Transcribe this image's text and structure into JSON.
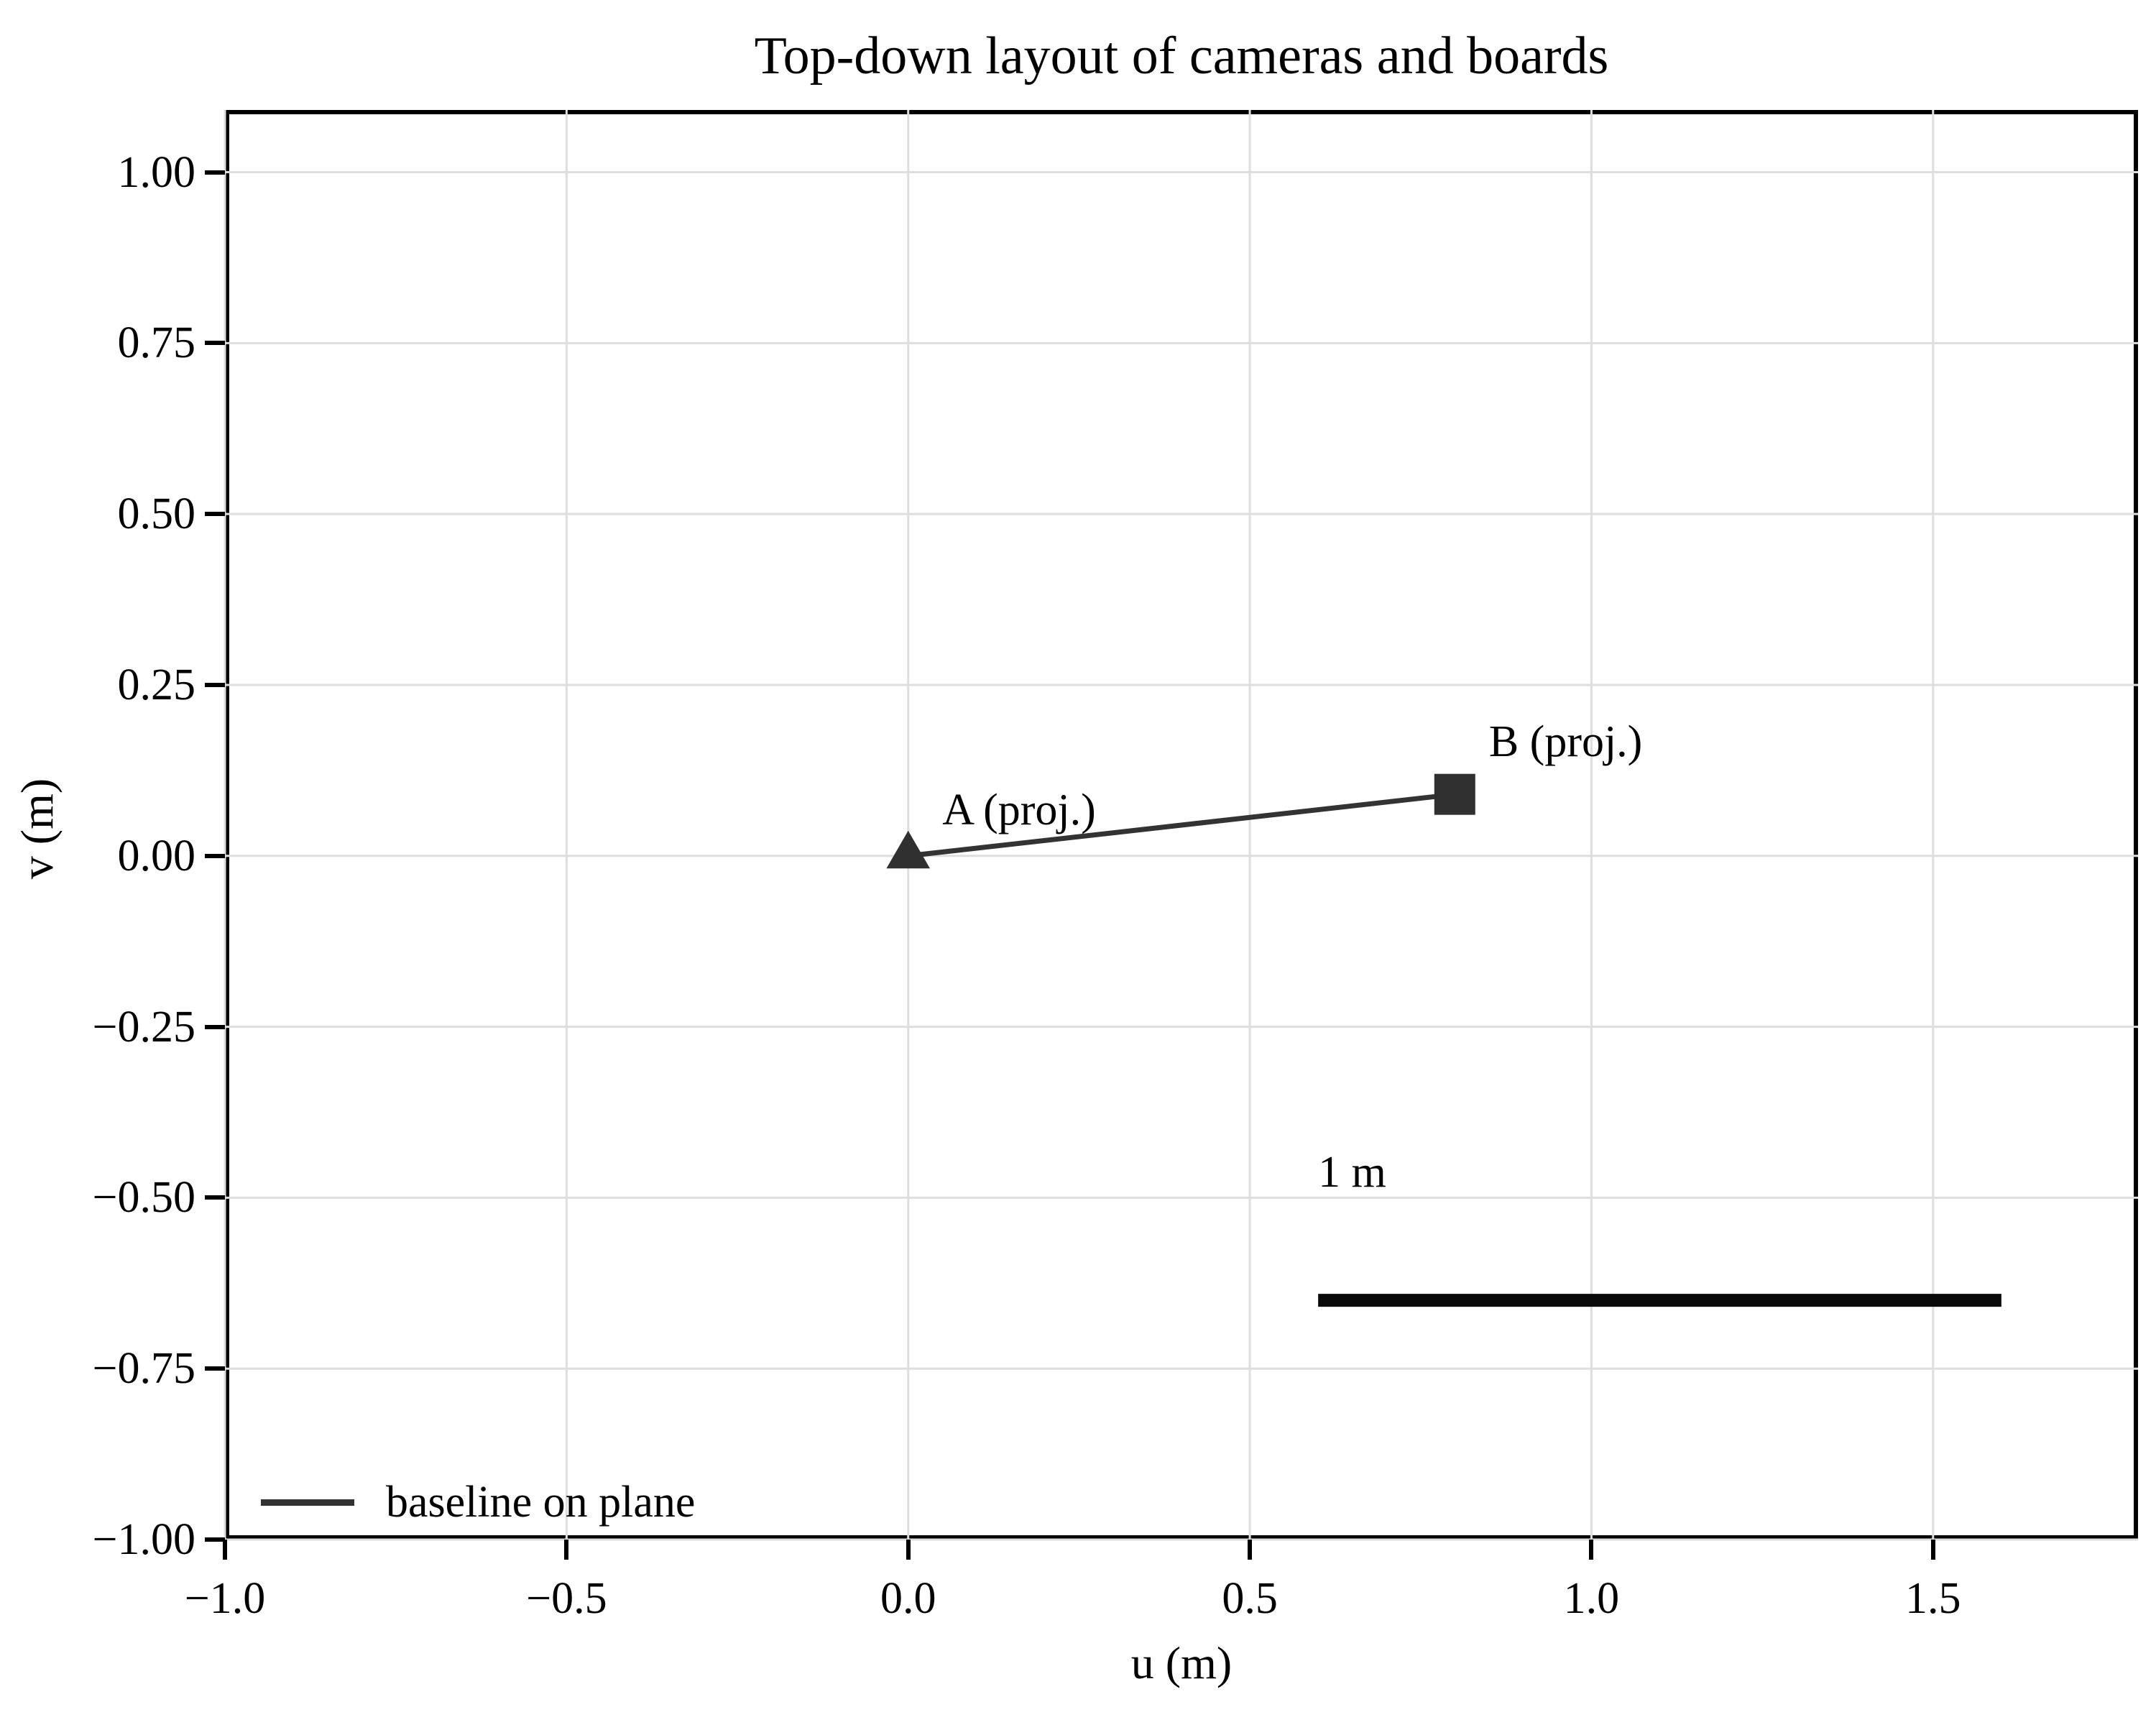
{
  "title": "Top-down layout of cameras and boards",
  "chart_data": {
    "type": "scatter",
    "title": "Top-down layout of cameras and boards",
    "xlabel": "u (m)",
    "ylabel": "v (m)",
    "xlim": [
      -1.0,
      1.8
    ],
    "ylim": [
      -1.0,
      1.091
    ],
    "grid": true,
    "grid_color": "#dedede",
    "aspect": "equal",
    "xticks": {
      "values": [
        -1.0,
        -0.5,
        0.0,
        0.5,
        1.0,
        1.5
      ],
      "labels": [
        "−1.0",
        "−0.5",
        "0.0",
        "0.5",
        "1.0",
        "1.5"
      ]
    },
    "yticks": {
      "values": [
        -1.0,
        -0.75,
        -0.5,
        -0.25,
        0.0,
        0.25,
        0.5,
        0.75,
        1.0
      ],
      "labels": [
        "−1.00",
        "−0.75",
        "−0.50",
        "−0.25",
        "0.00",
        "0.25",
        "0.50",
        "0.75",
        "1.00"
      ]
    },
    "series": [
      {
        "name": "baseline-on-plane-line",
        "type": "line",
        "points": [
          [
            0.0,
            0.0
          ],
          [
            0.8,
            0.09
          ]
        ],
        "color": "#333333",
        "linewidth": 7
      },
      {
        "name": "camera-a-marker",
        "type": "marker",
        "marker": "triangle-up",
        "point": [
          0.0,
          0.0
        ],
        "size": 35,
        "color": "#303030"
      },
      {
        "name": "camera-b-marker",
        "type": "marker",
        "marker": "square",
        "point": [
          0.8,
          0.09
        ],
        "size": 57,
        "color": "#303030"
      },
      {
        "name": "scale-bar",
        "type": "line",
        "points": [
          [
            0.6,
            -0.65
          ],
          [
            1.6,
            -0.65
          ]
        ],
        "color": "#0a0a0a",
        "linewidth": 18
      }
    ],
    "annotations": [
      {
        "name": "camera-a-label",
        "text": "A (proj.)",
        "at": [
          0.05,
          0.03
        ]
      },
      {
        "name": "camera-b-label",
        "text": "B (proj.)",
        "at": [
          0.85,
          0.13
        ]
      },
      {
        "name": "scale-bar-label",
        "text": "1 m",
        "at": [
          0.6,
          -0.5
        ]
      }
    ],
    "legend": {
      "position": "lower left",
      "frame": false,
      "entries": [
        {
          "label": "baseline on plane",
          "color": "#333333"
        }
      ]
    }
  }
}
